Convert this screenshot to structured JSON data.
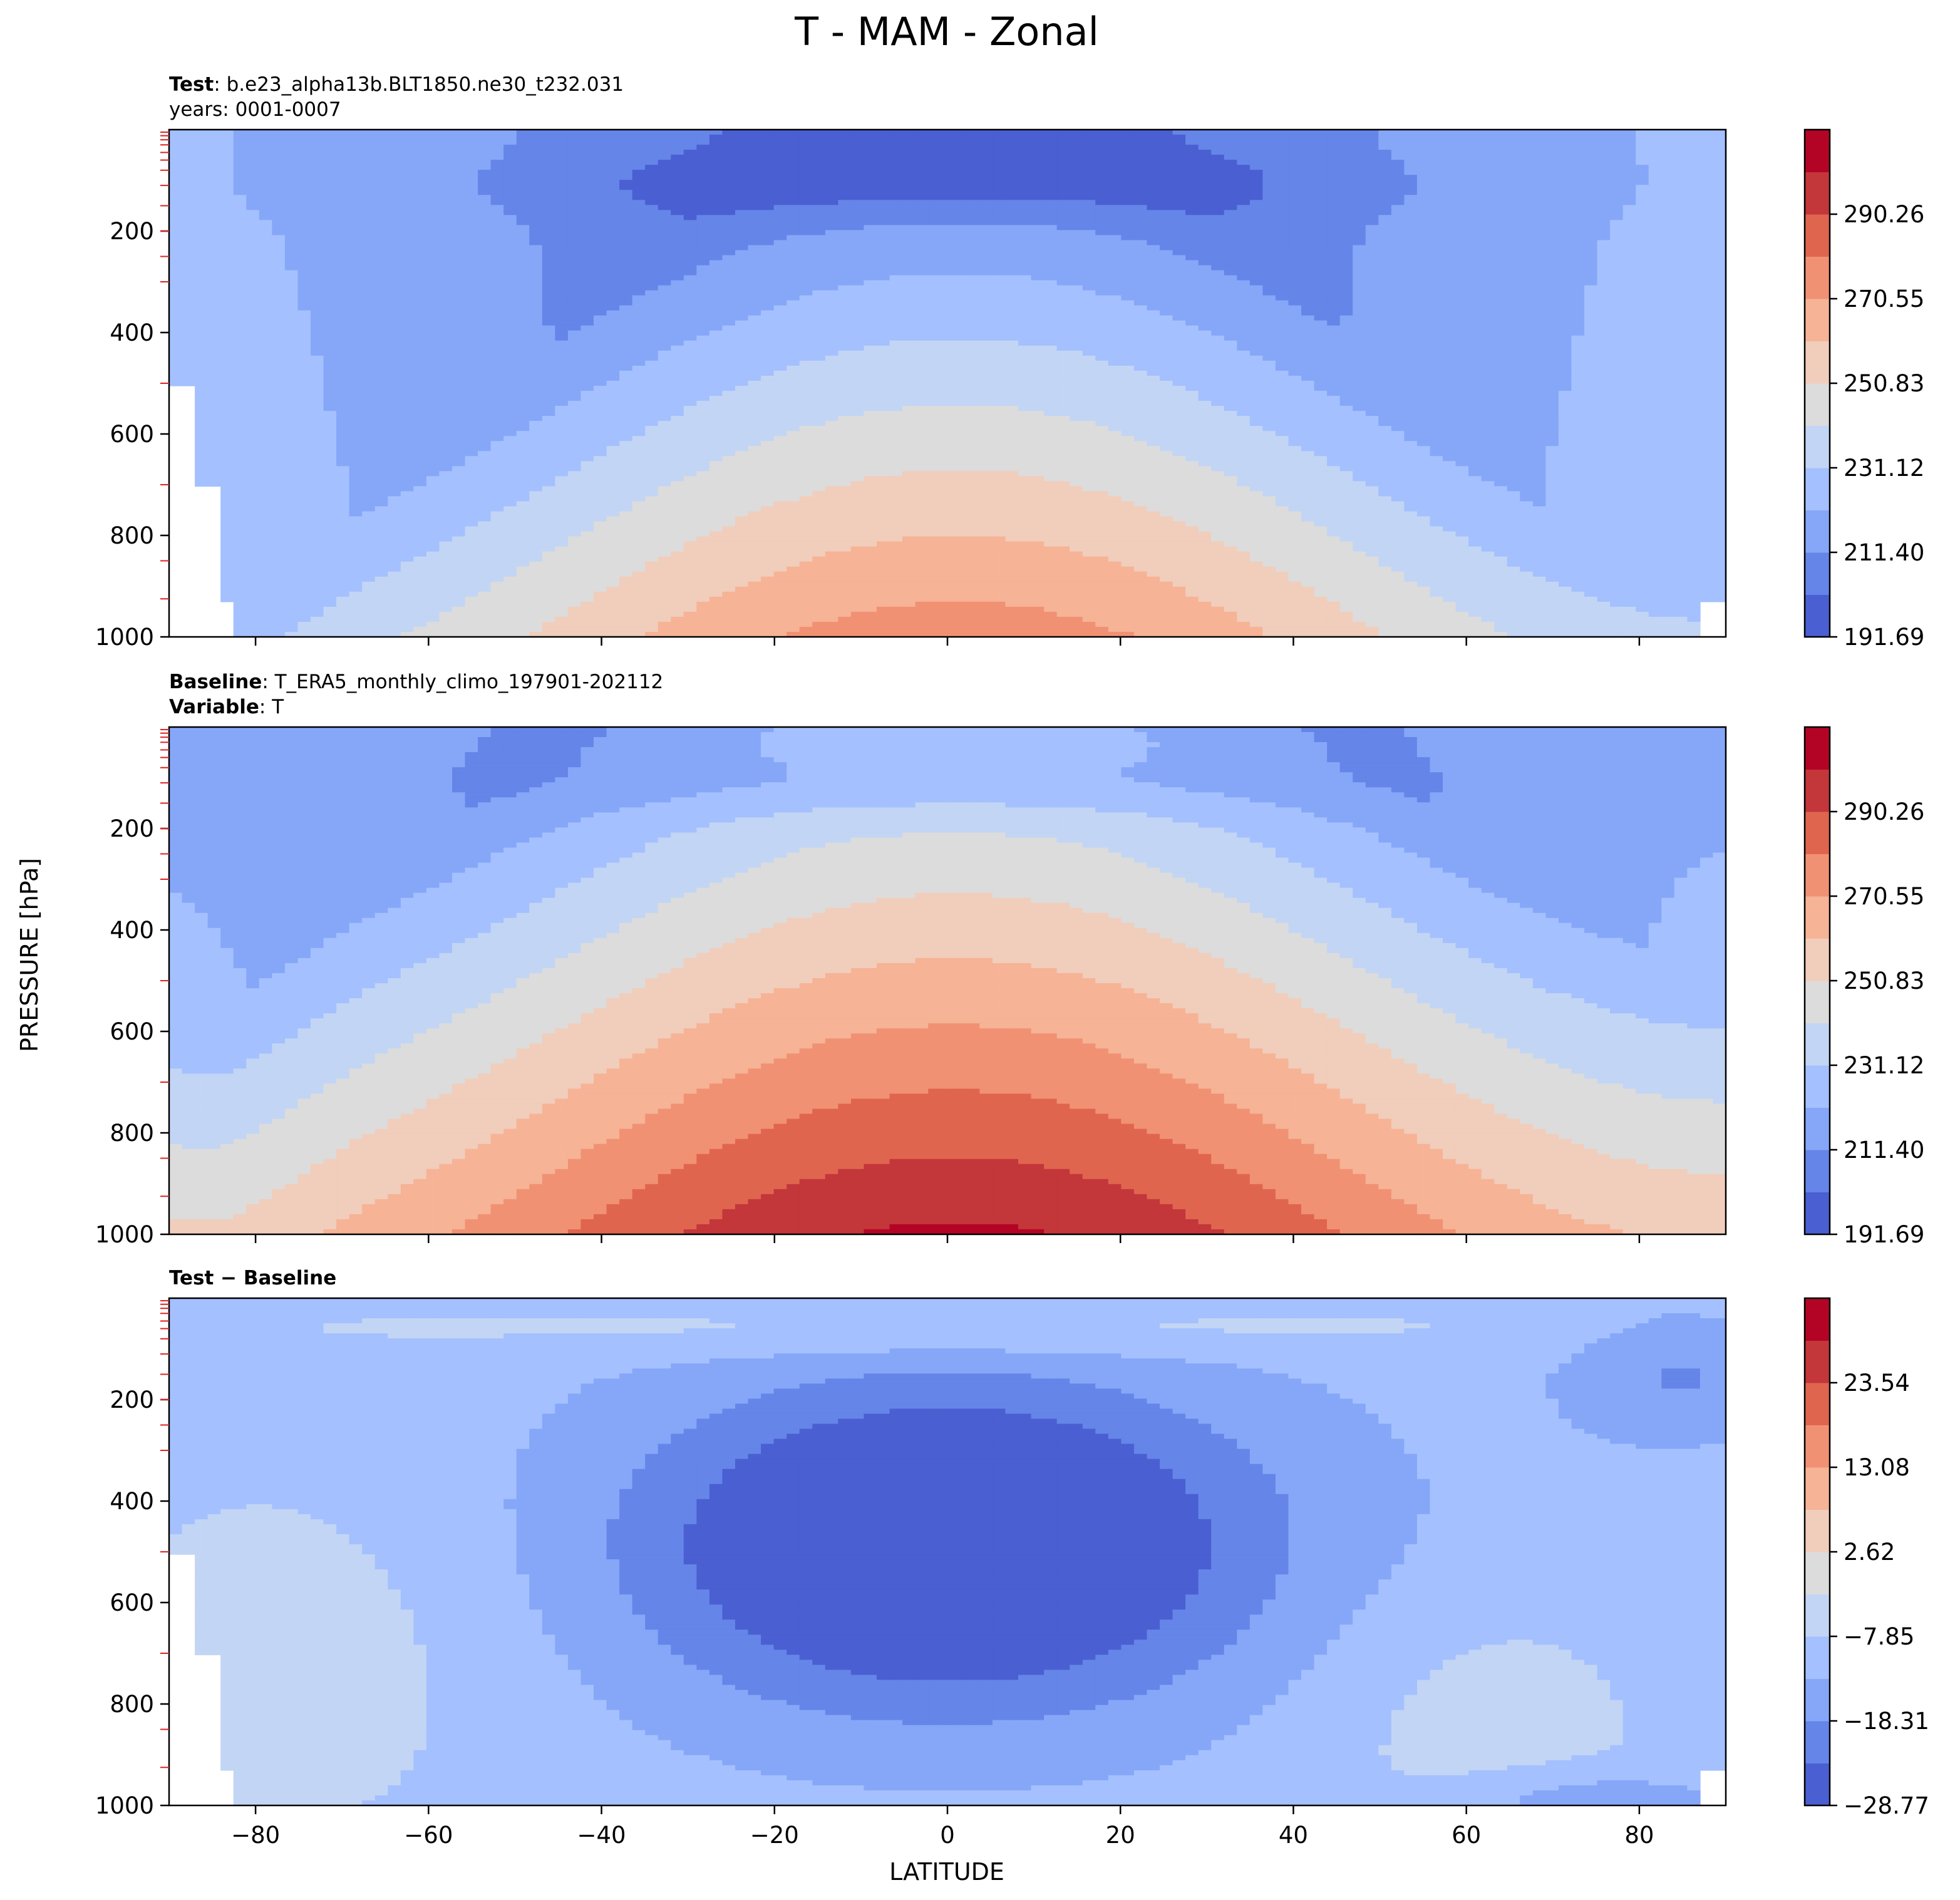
{
  "figure": {
    "title": "T - MAM - Zonal",
    "ylabel": "PRESSURE [hPa]",
    "xlabel": "LATITUDE"
  },
  "panels": [
    {
      "key": "test",
      "header_lines": [
        {
          "bold": "Test",
          "sep": ": ",
          "text": "b.e23_alpha13b.BLT1850.ne30_t232.031"
        },
        {
          "bold": "",
          "sep": "",
          "text": "years: 0001-0007"
        }
      ]
    },
    {
      "key": "baseline",
      "header_lines": [
        {
          "bold": "Baseline",
          "sep": ": ",
          "text": "T_ERA5_monthly_climo_197901-202112"
        },
        {
          "bold": "Variable",
          "sep": ": ",
          "text": "T"
        }
      ]
    },
    {
      "key": "diff",
      "header_lines": [
        {
          "bold": "Test − Baseline",
          "sep": "",
          "text": ""
        }
      ]
    }
  ],
  "chart_data": [
    {
      "type": "contourf",
      "panel": "test",
      "x_range": [
        -90,
        90
      ],
      "y_range": [
        0,
        1000
      ],
      "y_inverted": true,
      "x_ticks": [
        -80,
        -60,
        -40,
        -20,
        0,
        20,
        40,
        60,
        80
      ],
      "y_ticks": [
        200,
        400,
        600,
        800,
        1000
      ],
      "level_min": 191.69,
      "level_step": 9.855,
      "levels_count": 12,
      "colorbar_ticks": [
        "191.69",
        "211.40",
        "231.12",
        "250.83",
        "270.55",
        "290.26"
      ],
      "field": {
        "kind": "temperature",
        "surface_value_eq": 272,
        "eq_hump_lat": 15,
        "stratosphere_min": 197,
        "missing_below_surface": true
      }
    },
    {
      "type": "contourf",
      "panel": "baseline",
      "x_range": [
        -90,
        90
      ],
      "y_range": [
        0,
        1000
      ],
      "y_inverted": true,
      "x_ticks": [
        -80,
        -60,
        -40,
        -20,
        0,
        20,
        40,
        60,
        80
      ],
      "y_ticks": [
        200,
        400,
        600,
        800,
        1000
      ],
      "level_min": 191.69,
      "level_step": 9.855,
      "levels_count": 12,
      "colorbar_ticks": [
        "191.69",
        "211.40",
        "231.12",
        "250.83",
        "270.55",
        "290.26"
      ],
      "field": {
        "kind": "temperature",
        "surface_value_eq": 298,
        "eq_hump_lat": 10,
        "stratosphere_min": 194,
        "missing_below_surface": false
      }
    },
    {
      "type": "contourf",
      "panel": "diff",
      "x_range": [
        -90,
        90
      ],
      "y_range": [
        0,
        1000
      ],
      "y_inverted": true,
      "x_ticks": [
        -80,
        -60,
        -40,
        -20,
        0,
        20,
        40,
        60,
        80
      ],
      "y_ticks": [
        200,
        400,
        600,
        800,
        1000
      ],
      "level_min": -28.77,
      "level_step": 5.23,
      "levels_count": 12,
      "colorbar_ticks": [
        "−28.77",
        "−18.31",
        "−7.85",
        "2.62",
        "13.08",
        "23.54"
      ],
      "field": {
        "kind": "difference",
        "core_value": -27,
        "core_lat": 0,
        "core_p": 480,
        "missing_below_surface": true
      }
    }
  ],
  "colormap": [
    "#4a5fd1",
    "#6585e8",
    "#86a7f8",
    "#a4c0fe",
    "#c2d5f4",
    "#dcdcdc",
    "#f1cdbb",
    "#f6b396",
    "#f19173",
    "#e0654f",
    "#c3363a",
    "#b40426"
  ]
}
